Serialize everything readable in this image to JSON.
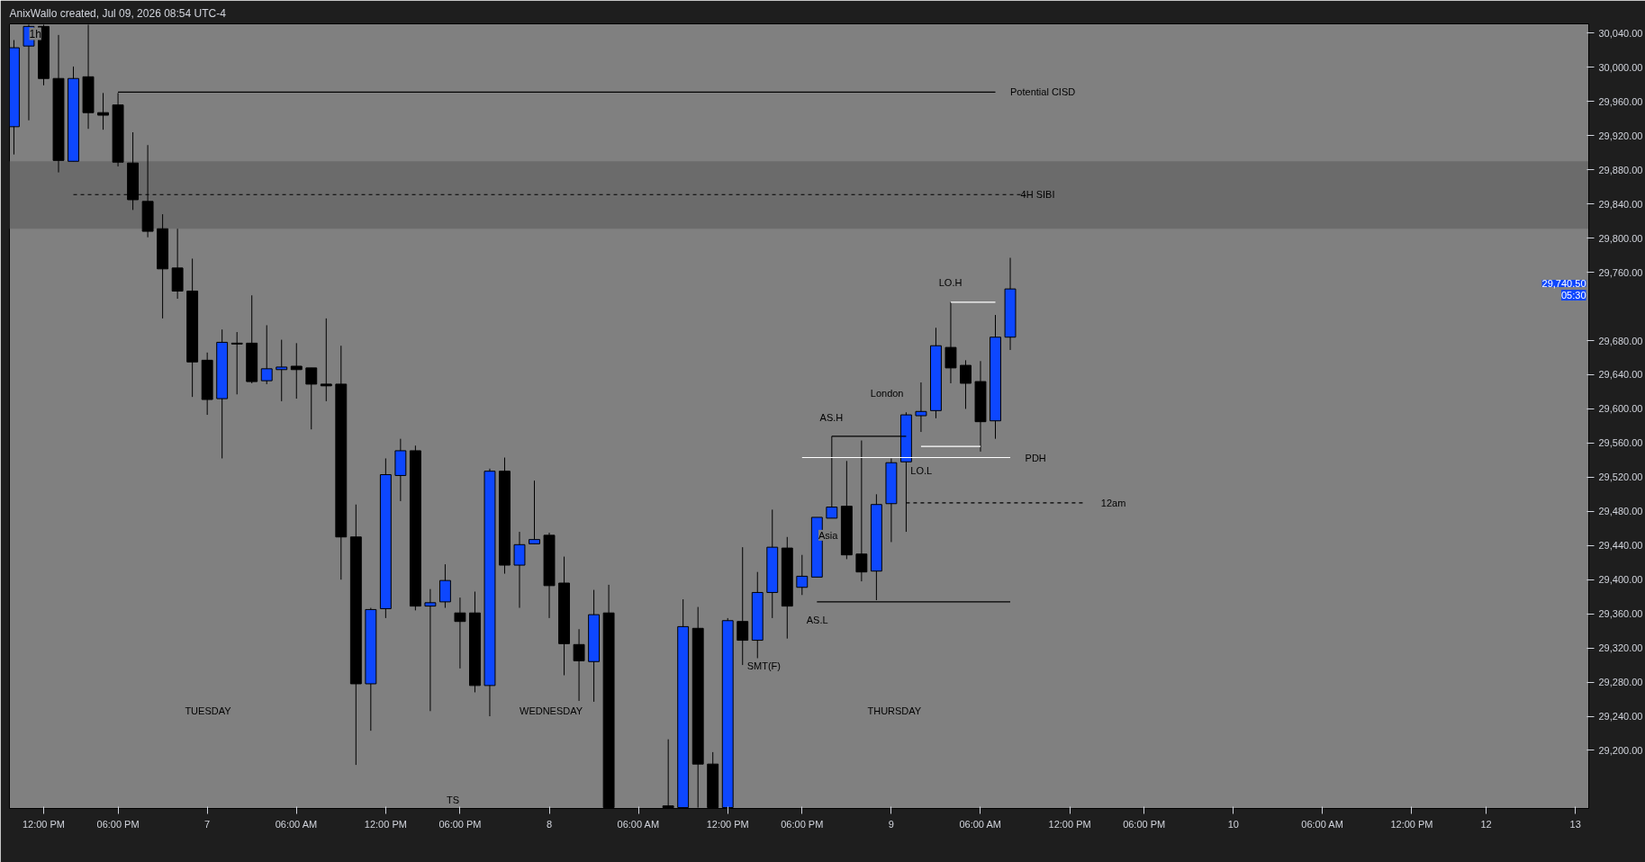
{
  "chart_data": {
    "type": "candlestick",
    "title": "1h",
    "annotations": [
      "AnixWallo created, Jul 09, 2026 08:54 UTC-4",
      "Potential CISD",
      "4H SIBI",
      "AS.H",
      "AS.L",
      "LO.H",
      "LO.L",
      "PDH",
      "12am",
      "Asia",
      "London",
      "SMT(F)",
      "TUESDAY",
      "WEDNESDAY",
      "THURSDAY",
      "TS",
      "29,740.50",
      "05:30"
    ],
    "categories": [
      null,
      null,
      "12:00 PM",
      null,
      null,
      null,
      null,
      "06:00 PM",
      null,
      null,
      null,
      null,
      null,
      "7",
      null,
      null,
      null,
      null,
      null,
      "06:00 AM",
      null,
      null,
      null,
      null,
      null,
      "12:00 PM",
      null,
      null,
      null,
      null,
      "06:00 PM",
      null,
      null,
      null,
      null,
      null,
      "8",
      null,
      null,
      null,
      null,
      null,
      "06:00 AM",
      null,
      null,
      null,
      null,
      null,
      "12:00 PM",
      null,
      null,
      null,
      null,
      "06:00 PM",
      null,
      null,
      null,
      null,
      null,
      "9",
      null,
      null,
      null,
      null,
      null,
      "06:00 AM",
      null,
      null,
      null,
      null,
      null,
      "12:00 PM",
      null,
      null,
      null,
      null,
      "06:00 PM",
      null,
      null,
      null,
      null,
      null,
      "10",
      null,
      null,
      null,
      null,
      null,
      "06:00 AM",
      null,
      null,
      null,
      null,
      null,
      "12:00 PM",
      null,
      null,
      null,
      null,
      "12",
      null,
      null,
      null,
      null,
      null,
      "13"
    ],
    "ohlc": [
      [
        29930.5,
        30032,
        29898,
        30023
      ],
      [
        30025,
        30050,
        29938,
        30048
      ],
      [
        30048,
        30050,
        29979,
        29987
      ],
      [
        29987,
        30038,
        29877,
        29891
      ],
      [
        29890,
        30001,
        29890,
        29987
      ],
      [
        29989,
        30050,
        29928,
        29947
      ],
      [
        29947,
        29970,
        29927,
        29944
      ],
      [
        29956,
        29970,
        29884,
        29889
      ],
      [
        29888,
        29924,
        29833,
        29845
      ],
      [
        29843,
        29909,
        29801,
        29808
      ],
      [
        29811,
        29828,
        29706,
        29764
      ],
      [
        29765,
        29811,
        29729,
        29738
      ],
      [
        29738,
        29776,
        29614,
        29655
      ],
      [
        29657,
        29666,
        29593,
        29611
      ],
      [
        29612,
        29693,
        29542,
        29678
      ],
      [
        29677,
        29690,
        29617,
        29676
      ],
      [
        29677,
        29733,
        29630,
        29632
      ],
      [
        29633,
        29698,
        29629,
        29647
      ],
      [
        29646,
        29681,
        29609,
        29649
      ],
      [
        29650,
        29677,
        29612,
        29646
      ],
      [
        29648,
        29648,
        29576,
        29629
      ],
      [
        29629,
        29706,
        29609,
        29627
      ],
      [
        29629,
        29674,
        29400,
        29450
      ],
      [
        29450,
        29488,
        29183,
        29278
      ],
      [
        29278,
        29367,
        29223,
        29365
      ],
      [
        29366,
        29542,
        29355,
        29523
      ],
      [
        29522,
        29565,
        29492,
        29551
      ],
      [
        29551,
        29557,
        29364,
        29369
      ],
      [
        29369,
        29389,
        29246,
        29373
      ],
      [
        29374,
        29418,
        29367,
        29399
      ],
      [
        29361,
        29379,
        29296,
        29351
      ],
      [
        29361,
        29386,
        29268,
        29276
      ],
      [
        29276,
        29530,
        29240,
        29527
      ],
      [
        29527,
        29543,
        29407,
        29417
      ],
      [
        29417,
        29456,
        29367,
        29441
      ],
      [
        29442,
        29516,
        29442,
        29447
      ],
      [
        29452,
        29455,
        29355,
        29393
      ],
      [
        29396,
        29427,
        29288,
        29325
      ],
      [
        29324,
        29342,
        29258,
        29305
      ],
      [
        29304,
        29388,
        29257,
        29359
      ],
      [
        29361,
        29394,
        29133,
        29133
      ],
      null,
      null,
      null,
      [
        29135,
        29213,
        29133,
        29133
      ],
      [
        29133,
        29377,
        29133,
        29345
      ],
      [
        29343,
        29368,
        29133,
        29184
      ],
      [
        29184,
        29198,
        29133,
        29133
      ],
      [
        29133,
        29355,
        29133,
        29352
      ],
      [
        29351,
        29438,
        29300,
        29329
      ],
      [
        29329,
        29409,
        29308,
        29385
      ],
      [
        29385,
        29482,
        29355,
        29438
      ],
      [
        29437,
        29450,
        29331,
        29369
      ],
      [
        29391,
        29429,
        29382,
        29404
      ],
      [
        29403,
        29473,
        29403,
        29473
      ],
      [
        29472,
        29568,
        29472,
        29485
      ],
      [
        29486,
        29539,
        29424,
        29429
      ],
      [
        29430,
        29563,
        29398,
        29409
      ],
      [
        29410,
        29500,
        29376,
        29488
      ],
      [
        29489,
        29542,
        29444,
        29537
      ],
      [
        29538,
        29596,
        29456,
        29593
      ],
      [
        29592,
        29631,
        29573,
        29597
      ],
      [
        29598,
        29695,
        29589,
        29674
      ],
      [
        29672,
        29725,
        29630,
        29648
      ],
      [
        29651,
        29657,
        29600,
        29630
      ],
      [
        29632,
        29656,
        29550,
        29585
      ],
      [
        29586,
        29710,
        29565,
        29684
      ],
      [
        29684,
        29777,
        29669,
        29740.5
      ],
      null,
      null,
      null,
      null,
      null,
      null,
      null,
      null,
      null,
      null,
      null,
      null,
      null,
      null,
      null,
      null,
      null,
      null,
      null,
      null,
      null,
      null,
      null,
      null,
      null,
      null,
      null,
      null,
      null,
      null,
      null,
      null,
      null,
      null,
      null,
      null,
      null,
      null
    ],
    "colors": [
      "#0d47ff",
      "#0d47ff",
      "#000000",
      "#000000",
      "#0d47ff",
      "#000000",
      "#000000",
      "#000000",
      "#000000",
      "#000000",
      "#000000",
      "#000000",
      "#000000",
      "#000000",
      "#0d47ff",
      "#000000",
      "#000000",
      "#0d47ff",
      "#0d47ff",
      "#000000",
      "#000000",
      "#000000",
      "#000000",
      "#000000",
      "#0d47ff",
      "#0d47ff",
      "#0d47ff",
      "#000000",
      "#0d47ff",
      "#0d47ff",
      "#000000",
      "#000000",
      "#0d47ff",
      "#000000",
      "#0d47ff",
      "#0d47ff",
      "#000000",
      "#000000",
      "#000000",
      "#0d47ff",
      "#000000",
      null,
      null,
      null,
      "#000000",
      "#0d47ff",
      "#000000",
      "#000000",
      "#0d47ff",
      "#000000",
      "#0d47ff",
      "#0d47ff",
      "#000000",
      "#0d47ff",
      "#0d47ff",
      "#0d47ff",
      "#000000",
      "#000000",
      "#0d47ff",
      "#0d47ff",
      "#0d47ff",
      "#0d47ff",
      "#0d47ff",
      "#000000",
      "#000000",
      "#000000",
      "#0d47ff",
      "#0d47ff",
      null,
      null,
      null,
      null,
      null,
      null,
      null,
      null,
      null,
      null,
      null,
      null,
      null,
      null,
      null,
      null,
      null,
      null,
      null,
      null,
      null,
      null,
      null,
      null,
      null,
      null,
      null,
      null,
      null,
      null,
      null,
      null,
      null,
      null,
      null,
      null,
      null,
      null
    ],
    "series": [
      {
        "type": "line",
        "color": "#000000",
        "line_style": "solid",
        "values": [
          null,
          null,
          null,
          null,
          null,
          null,
          null,
          29971,
          29971,
          29971,
          29971,
          29971,
          29971,
          29971,
          29971,
          29971,
          29971,
          29971,
          29971,
          29971,
          29971,
          29971,
          29971,
          29971,
          29971,
          29971,
          29971,
          29971,
          29971,
          29971,
          29971,
          29971,
          29971,
          29971,
          29971,
          29971,
          29971,
          29971,
          29971,
          29971,
          29971,
          29971,
          29971,
          29971,
          29971,
          29971,
          29971,
          29971,
          29971,
          29971,
          29971,
          29971,
          29971,
          29971,
          29971,
          29971,
          29971,
          29971,
          29971,
          29971,
          29971,
          29971,
          29971,
          29971,
          29971,
          29971,
          29971,
          null,
          null,
          null,
          null,
          null,
          null,
          null,
          null,
          null,
          null,
          null,
          null,
          null,
          null,
          null,
          null,
          null,
          null,
          null,
          null,
          null,
          null,
          null,
          null,
          null,
          null,
          null,
          null,
          null,
          null,
          null,
          null,
          null,
          null,
          null,
          null,
          null,
          null,
          null
        ]
      },
      {
        "type": "line",
        "color": "#000000",
        "line_style": "dashed",
        "values": [
          null,
          null,
          null,
          null,
          29851,
          29851,
          29851,
          29851,
          29851,
          29851,
          29851,
          29851,
          29851,
          29851,
          29851,
          29851,
          29851,
          29851,
          29851,
          29851,
          29851,
          29851,
          29851,
          29851,
          29851,
          29851,
          29851,
          29851,
          29851,
          29851,
          29851,
          29851,
          29851,
          29851,
          29851,
          29851,
          29851,
          29851,
          29851,
          29851,
          29851,
          29851,
          29851,
          29851,
          29851,
          29851,
          29851,
          29851,
          29851,
          29851,
          29851,
          29851,
          29851,
          29851,
          29851,
          29851,
          29851,
          29851,
          29851,
          29851,
          29851,
          29851,
          29851,
          29851,
          29851,
          29851,
          29851,
          29851,
          29851,
          null,
          null,
          null,
          null,
          null,
          null,
          null,
          null,
          null,
          null,
          null,
          null,
          null,
          null,
          null,
          null,
          null,
          null,
          null,
          null,
          null,
          null,
          null,
          null,
          null,
          null,
          null,
          null,
          null,
          null,
          null,
          null,
          null,
          null,
          null,
          null,
          null
        ]
      },
      {
        "type": "line",
        "color": "#000000",
        "line_style": "solid",
        "values": [
          null,
          null,
          null,
          null,
          null,
          null,
          null,
          null,
          null,
          null,
          null,
          null,
          null,
          null,
          null,
          null,
          null,
          null,
          null,
          null,
          null,
          null,
          null,
          null,
          null,
          null,
          null,
          null,
          null,
          null,
          null,
          null,
          null,
          null,
          null,
          null,
          null,
          null,
          null,
          null,
          null,
          null,
          null,
          null,
          null,
          null,
          null,
          null,
          null,
          null,
          null,
          null,
          null,
          null,
          null,
          29568,
          29568,
          29568,
          29568,
          29568,
          29568,
          null,
          null,
          null,
          null,
          null,
          null,
          null,
          null,
          null,
          null,
          null,
          null,
          null,
          null,
          null,
          null,
          null,
          null,
          null,
          null,
          null,
          null,
          null,
          null,
          null,
          null,
          null,
          null,
          null,
          null,
          null,
          null,
          null,
          null,
          null,
          null,
          null,
          null,
          null,
          null,
          null,
          null,
          null,
          null,
          null
        ]
      },
      {
        "type": "line",
        "color": "#000000",
        "line_style": "solid",
        "values": [
          null,
          null,
          null,
          null,
          null,
          null,
          null,
          null,
          null,
          null,
          null,
          null,
          null,
          null,
          null,
          null,
          null,
          null,
          null,
          null,
          null,
          null,
          null,
          null,
          null,
          null,
          null,
          null,
          null,
          null,
          null,
          null,
          null,
          null,
          null,
          null,
          null,
          null,
          null,
          null,
          null,
          null,
          null,
          null,
          null,
          null,
          null,
          null,
          null,
          null,
          null,
          null,
          null,
          null,
          29374,
          29374,
          29374,
          29374,
          29374,
          29374,
          29374,
          29374,
          29374,
          29374,
          29374,
          29374,
          29374,
          29374,
          null,
          null,
          null,
          null,
          null,
          null,
          null,
          null,
          null,
          null,
          null,
          null,
          null,
          null,
          null,
          null,
          null,
          null,
          null,
          null,
          null,
          null,
          null,
          null,
          null,
          null,
          null,
          null,
          null,
          null,
          null,
          null,
          null,
          null,
          null,
          null,
          null,
          null
        ]
      },
      {
        "type": "line",
        "color": "#ffffff",
        "line_style": "solid",
        "values": [
          null,
          null,
          null,
          null,
          null,
          null,
          null,
          null,
          null,
          null,
          null,
          null,
          null,
          null,
          null,
          null,
          null,
          null,
          null,
          null,
          null,
          null,
          null,
          null,
          null,
          null,
          null,
          null,
          null,
          null,
          null,
          null,
          null,
          null,
          null,
          null,
          null,
          null,
          null,
          null,
          null,
          null,
          null,
          null,
          null,
          null,
          null,
          null,
          null,
          null,
          null,
          null,
          null,
          29543,
          29543,
          29543,
          29543,
          29543,
          29543,
          29543,
          29543,
          29543,
          29543,
          29543,
          29543,
          29543,
          29543,
          29543,
          null,
          null,
          null,
          null,
          null,
          null,
          null,
          null,
          null,
          null,
          null,
          null,
          null,
          null,
          null,
          null,
          null,
          null,
          null,
          null,
          null,
          null,
          null,
          null,
          null,
          null,
          null,
          null,
          null,
          null,
          null,
          null,
          null,
          null,
          null,
          null,
          null,
          null
        ]
      },
      {
        "type": "line",
        "color": "#ffffff",
        "line_style": "solid",
        "values": [
          null,
          null,
          null,
          null,
          null,
          null,
          null,
          null,
          null,
          null,
          null,
          null,
          null,
          null,
          null,
          null,
          null,
          null,
          null,
          null,
          null,
          null,
          null,
          null,
          null,
          null,
          null,
          null,
          null,
          null,
          null,
          null,
          null,
          null,
          null,
          null,
          null,
          null,
          null,
          null,
          null,
          null,
          null,
          null,
          null,
          null,
          null,
          null,
          null,
          null,
          null,
          null,
          null,
          null,
          null,
          null,
          null,
          null,
          null,
          null,
          null,
          null,
          null,
          29725,
          29725,
          29725,
          29725,
          null,
          null,
          null,
          null,
          null,
          null,
          null,
          null,
          null,
          null,
          null,
          null,
          null,
          null,
          null,
          null,
          null,
          null,
          null,
          null,
          null,
          null,
          null,
          null,
          null,
          null,
          null,
          null,
          null,
          null,
          null,
          null,
          null,
          null,
          null,
          null,
          null,
          null,
          null
        ]
      },
      {
        "type": "line",
        "color": "#ffffff",
        "line_style": "solid",
        "values": [
          null,
          null,
          null,
          null,
          null,
          null,
          null,
          null,
          null,
          null,
          null,
          null,
          null,
          null,
          null,
          null,
          null,
          null,
          null,
          null,
          null,
          null,
          null,
          null,
          null,
          null,
          null,
          null,
          null,
          null,
          null,
          null,
          null,
          null,
          null,
          null,
          null,
          null,
          null,
          null,
          null,
          null,
          null,
          null,
          null,
          null,
          null,
          null,
          null,
          null,
          null,
          null,
          null,
          null,
          null,
          null,
          null,
          null,
          null,
          null,
          null,
          29556,
          29556,
          29556,
          29556,
          29556,
          null,
          null,
          null,
          null,
          null,
          null,
          null,
          null,
          null,
          null,
          null,
          null,
          null,
          null,
          null,
          null,
          null,
          null,
          null,
          null,
          null,
          null,
          null,
          null,
          null,
          null,
          null,
          null,
          null,
          null,
          null,
          null,
          null,
          null,
          null,
          null,
          null,
          null,
          null,
          null
        ]
      },
      {
        "type": "line",
        "color": "#000000",
        "line_style": "dashed",
        "values": [
          null,
          null,
          null,
          null,
          null,
          null,
          null,
          null,
          null,
          null,
          null,
          null,
          null,
          null,
          null,
          null,
          null,
          null,
          null,
          null,
          null,
          null,
          null,
          null,
          null,
          null,
          null,
          null,
          null,
          null,
          null,
          null,
          null,
          null,
          null,
          null,
          null,
          null,
          null,
          null,
          null,
          null,
          null,
          null,
          null,
          null,
          null,
          null,
          null,
          null,
          null,
          null,
          null,
          null,
          null,
          null,
          null,
          null,
          null,
          null,
          29490,
          29490,
          29490,
          29490,
          29490,
          29490,
          29490,
          29490,
          29490,
          29490,
          29490,
          29490,
          29490,
          null,
          null,
          null,
          null,
          null,
          null,
          null,
          null,
          null,
          null,
          null,
          null,
          null,
          null,
          null,
          null,
          null,
          null,
          null,
          null,
          null,
          null,
          null,
          null,
          null,
          null,
          null,
          null,
          null,
          null,
          null,
          null,
          null
        ]
      }
    ],
    "bands": [
      {
        "axis": "y",
        "from": 29811,
        "to": 29890,
        "color": "#6b6b6b"
      }
    ],
    "ylim": [
      29132,
      30051
    ],
    "yticks": [
      {
        "value": 29200,
        "label": "29,200.00"
      },
      {
        "value": 29240,
        "label": "29,240.00"
      },
      {
        "value": 29280,
        "label": "29,280.00"
      },
      {
        "value": 29320,
        "label": "29,320.00"
      },
      {
        "value": 29360,
        "label": "29,360.00"
      },
      {
        "value": 29400,
        "label": "29,400.00"
      },
      {
        "value": 29440,
        "label": "29,440.00"
      },
      {
        "value": 29480,
        "label": "29,480.00"
      },
      {
        "value": 29520,
        "label": "29,520.00"
      },
      {
        "value": 29560,
        "label": "29,560.00"
      },
      {
        "value": 29600,
        "label": "29,600.00"
      },
      {
        "value": 29640,
        "label": "29,640.00"
      },
      {
        "value": 29680,
        "label": "29,680.00"
      },
      {
        "value": 29760,
        "label": "29,760.00"
      },
      {
        "value": 29800,
        "label": "29,800.00"
      },
      {
        "value": 29840,
        "label": "29,840.00"
      },
      {
        "value": 29880,
        "label": "29,880.00"
      },
      {
        "value": 29920,
        "label": "29,920.00"
      },
      {
        "value": 29960,
        "label": "29,960.00"
      },
      {
        "value": 30000,
        "label": "30,000.00"
      },
      {
        "value": 30040,
        "label": "30,040.00"
      }
    ]
  }
}
